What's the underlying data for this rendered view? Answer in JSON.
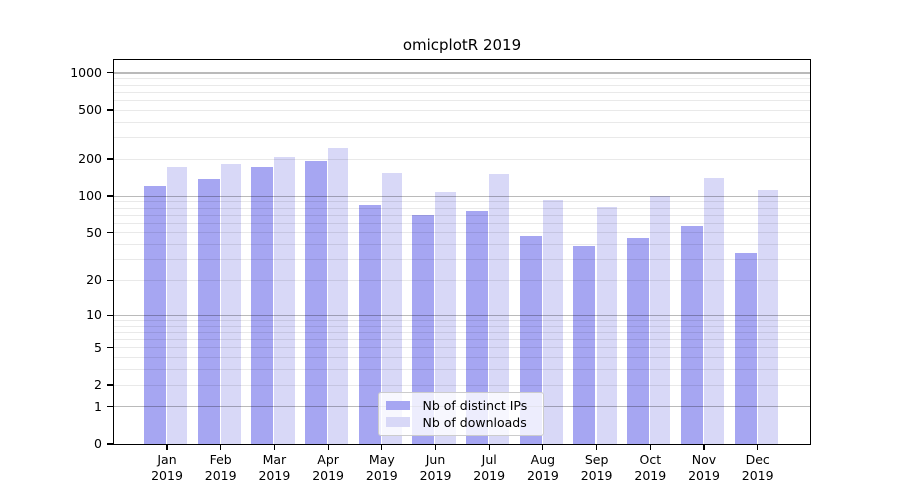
{
  "chart_data": {
    "type": "bar",
    "title": "omicplotR 2019",
    "year_label": "2019",
    "categories": [
      "Jan",
      "Feb",
      "Mar",
      "Apr",
      "May",
      "Jun",
      "Jul",
      "Aug",
      "Sep",
      "Oct",
      "Nov",
      "Dec"
    ],
    "series": [
      {
        "name": "Nb of distinct IPs",
        "color": "#a6a6f2",
        "values": [
          120,
          136,
          170,
          193,
          84,
          69,
          75,
          47,
          39,
          45,
          57,
          34
        ]
      },
      {
        "name": "Nb of downloads",
        "color": "#d8d8f7",
        "values": [
          170,
          182,
          207,
          245,
          152,
          107,
          150,
          92,
          81,
          100,
          139,
          111
        ]
      }
    ],
    "yscale": "log1p",
    "ylim": [
      0,
      1290
    ],
    "ytick_labels": [
      0,
      1,
      2,
      5,
      10,
      20,
      50,
      100,
      200,
      500,
      1000
    ],
    "major_grid_values": [
      1,
      10,
      100,
      1000
    ],
    "minor_grid_values": [
      2,
      3,
      4,
      5,
      6,
      7,
      8,
      9,
      20,
      30,
      40,
      50,
      60,
      70,
      80,
      90,
      200,
      300,
      400,
      500,
      600,
      700,
      800,
      900
    ],
    "grid": true,
    "legend_position": "lower center",
    "colors": {
      "background": "#ffffff",
      "axis": "#000000",
      "major_grid": "rgba(0,0,0,0.27)",
      "minor_grid": "rgba(0,0,0,0.085)",
      "legend_border": "#cccccc"
    }
  }
}
